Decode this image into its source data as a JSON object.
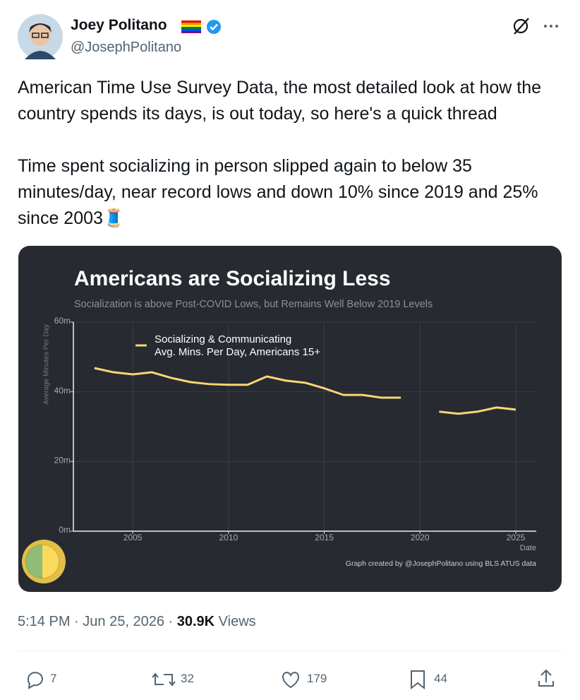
{
  "tweet": {
    "author": {
      "name": "Joey Politano",
      "handle": "@JosephPolitano"
    },
    "text": [
      "American Time Use Survey Data, the most detailed look at how the country spends its days, is out today, so here's a quick thread",
      "Time spent socializing in person slipped again to below 35 minutes/day, near record lows and down 10% since 2019 and 25% since 2003🧵"
    ],
    "time": "5:14 PM",
    "separator": "·",
    "date": "Jun 25, 2026",
    "views": "30.9K",
    "views_label": "Views",
    "actions": {
      "replies": 7,
      "reposts": 32,
      "likes": 179,
      "bookmarks": 44
    }
  },
  "chart_data": {
    "type": "line",
    "title": "Americans are Socializing Less",
    "subtitle": "Socialization is above Post-COVID Lows, but Remains Well Below 2019 Levels",
    "y_label": "Average Minutes Per Day",
    "x_label": "Date",
    "caption": "Graph created by @JosephPolitano using BLS ATUS data",
    "x": [
      2003,
      2004,
      2005,
      2006,
      2007,
      2008,
      2009,
      2010,
      2011,
      2012,
      2013,
      2014,
      2015,
      2016,
      2017,
      2018,
      2019,
      2020,
      2021,
      2022,
      2023,
      2024,
      2025
    ],
    "series": [
      {
        "name": "Socializing & Communicating\nAvg. Mins. Per Day, Americans 15+",
        "color": "#f7d774",
        "values": [
          46.8,
          45.6,
          45.0,
          45.6,
          44.0,
          42.8,
          42.2,
          42.0,
          42.0,
          44.4,
          43.2,
          42.6,
          41.0,
          39.1,
          39.1,
          38.3,
          38.3,
          null,
          34.3,
          33.7,
          34.3,
          35.5,
          34.9
        ]
      }
    ],
    "xlim": [
      2001.9,
      2026.07
    ],
    "ylim": [
      0,
      60
    ],
    "xticks": [
      2005,
      2010,
      2015,
      2020,
      2025
    ],
    "yticks": [
      {
        "value": 0,
        "label": "0m"
      },
      {
        "value": 20,
        "label": "20m"
      },
      {
        "value": 40,
        "label": "40m"
      },
      {
        "value": 60,
        "label": "60m"
      }
    ],
    "grid": true
  }
}
